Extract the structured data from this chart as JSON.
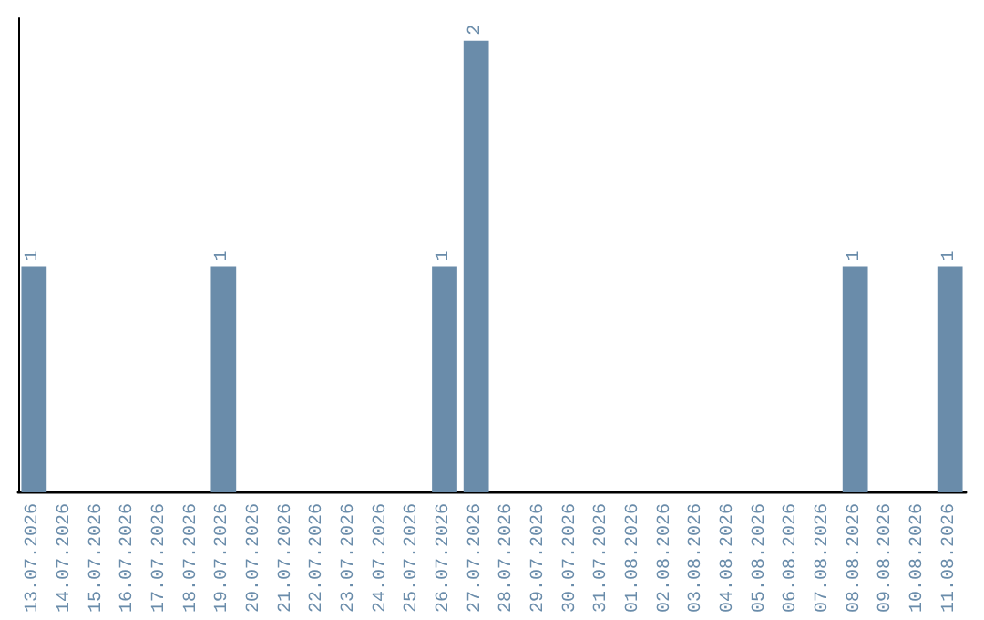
{
  "chart_data": {
    "type": "bar",
    "categories": [
      "13.07.2026",
      "14.07.2026",
      "15.07.2026",
      "16.07.2026",
      "17.07.2026",
      "18.07.2026",
      "19.07.2026",
      "20.07.2026",
      "21.07.2026",
      "22.07.2026",
      "23.07.2026",
      "24.07.2026",
      "25.07.2026",
      "26.07.2026",
      "27.07.2026",
      "28.07.2026",
      "29.07.2026",
      "30.07.2026",
      "31.07.2026",
      "01.08.2026",
      "02.08.2026",
      "03.08.2026",
      "04.08.2026",
      "05.08.2026",
      "06.08.2026",
      "07.08.2026",
      "08.08.2026",
      "09.08.2026",
      "10.08.2026",
      "11.08.2026"
    ],
    "values": [
      1,
      0,
      0,
      0,
      0,
      0,
      1,
      0,
      0,
      0,
      0,
      0,
      0,
      1,
      2,
      0,
      0,
      0,
      0,
      0,
      0,
      0,
      0,
      0,
      0,
      0,
      1,
      0,
      0,
      1
    ],
    "value_labels": [
      "1",
      null,
      null,
      null,
      null,
      null,
      "1",
      null,
      null,
      null,
      null,
      null,
      null,
      "1",
      "2",
      null,
      null,
      null,
      null,
      null,
      null,
      null,
      null,
      null,
      null,
      null,
      "1",
      null,
      null,
      "1"
    ],
    "color": "#6a8caa",
    "ylim": [
      0,
      2.1
    ],
    "tick_labels": "x"
  }
}
